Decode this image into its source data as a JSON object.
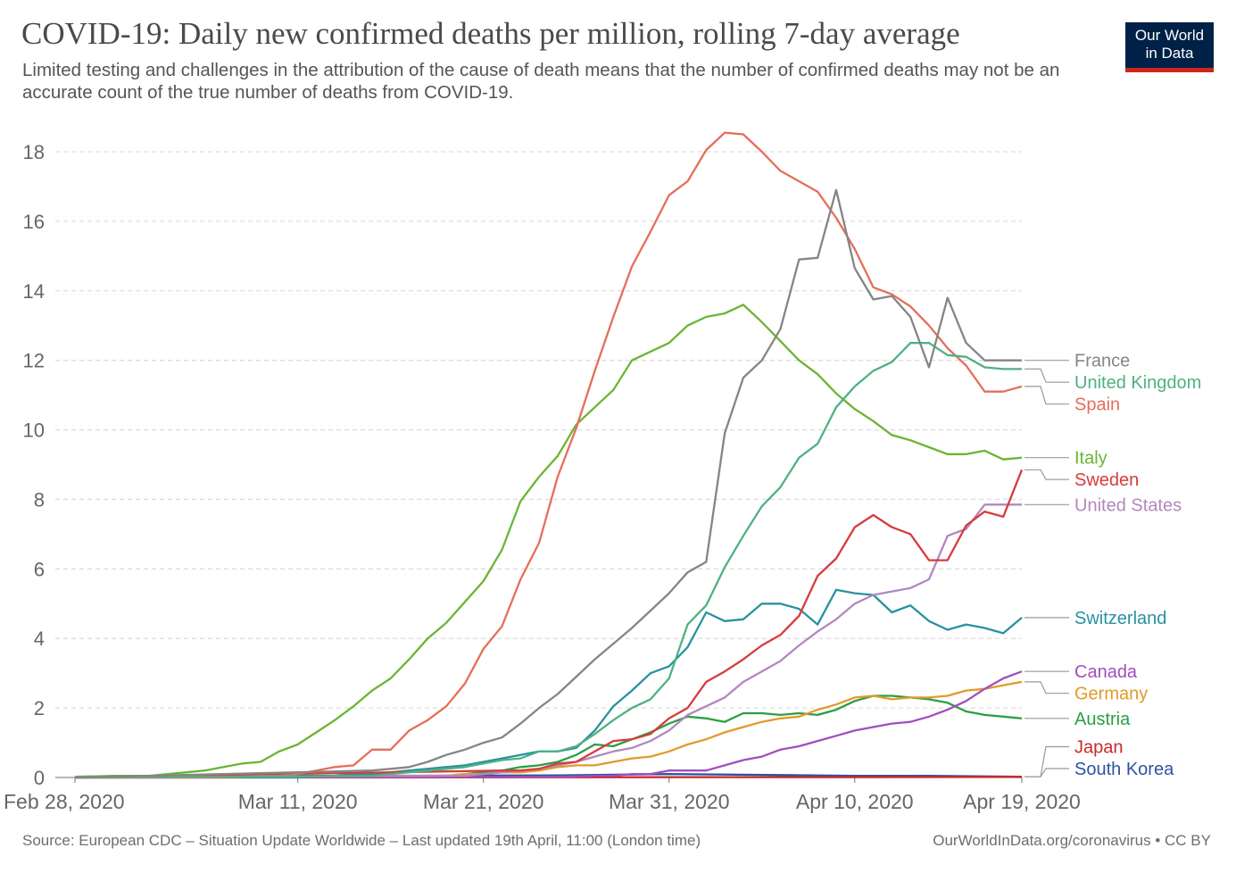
{
  "header": {
    "title": "COVID-19: Daily new confirmed deaths per million, rolling 7-day average",
    "subtitle": "Limited testing and challenges in the attribution of the cause of death means that the number of confirmed deaths may not be an accurate count of the true number of deaths from COVID-19."
  },
  "logo": {
    "line1": "Our World",
    "line2": "in Data"
  },
  "footer": {
    "source": "Source: European CDC – Situation Update Worldwide – Last updated 19th April, 11:00 (London time)",
    "credit": "OurWorldInData.org/coronavirus • CC BY"
  },
  "colors": {
    "grid": "#dddddd",
    "axis_text": "#666666",
    "connector": "#999999"
  },
  "chart_data": {
    "type": "line",
    "title": "COVID-19: Daily new confirmed deaths per million, rolling 7-day average",
    "xlabel": "",
    "ylabel": "",
    "x_start_date": "2020-02-28",
    "x_end_date": "2020-04-19",
    "xlim": [
      "2020-02-28",
      "2020-04-19"
    ],
    "ylim": [
      0,
      18
    ],
    "yticks": [
      0,
      2,
      4,
      6,
      8,
      10,
      12,
      14,
      16,
      18
    ],
    "xticks": [
      {
        "date": "2020-02-28",
        "label": "Feb 28, 2020"
      },
      {
        "date": "2020-03-11",
        "label": "Mar 11, 2020"
      },
      {
        "date": "2020-03-21",
        "label": "Mar 21, 2020"
      },
      {
        "date": "2020-03-31",
        "label": "Mar 31, 2020"
      },
      {
        "date": "2020-04-10",
        "label": "Apr 10, 2020"
      },
      {
        "date": "2020-04-19",
        "label": "Apr 19, 2020"
      }
    ],
    "grid": "horizontal dashed",
    "legend": "right, end-of-line labels",
    "series": [
      {
        "name": "France",
        "color": "#858585",
        "x": [
          "2020-03-15",
          "2020-03-16",
          "2020-03-17",
          "2020-03-18",
          "2020-03-19",
          "2020-03-20",
          "2020-03-21",
          "2020-03-22",
          "2020-03-23",
          "2020-03-24",
          "2020-03-25",
          "2020-03-26",
          "2020-03-27",
          "2020-03-28",
          "2020-03-29",
          "2020-03-30",
          "2020-03-31",
          "2020-04-01",
          "2020-04-02",
          "2020-04-03",
          "2020-04-04",
          "2020-04-05",
          "2020-04-06",
          "2020-04-07",
          "2020-04-08",
          "2020-04-09",
          "2020-04-10",
          "2020-04-11",
          "2020-04-12",
          "2020-04-13",
          "2020-04-14",
          "2020-04-15",
          "2020-04-16",
          "2020-04-17",
          "2020-04-18",
          "2020-04-19"
        ],
        "y": [
          0.2,
          0.25,
          0.3,
          0.45,
          0.65,
          0.8,
          1.0,
          1.15,
          1.55,
          2.0,
          2.4,
          2.9,
          3.4,
          3.85,
          4.3,
          4.8,
          5.3,
          5.9,
          6.2,
          9.9,
          11.5,
          12.0,
          12.9,
          14.9,
          14.95,
          16.9,
          14.65,
          13.75,
          13.85,
          13.25,
          11.8,
          13.8,
          12.5,
          12.0,
          12.0,
          12.0
        ]
      },
      {
        "name": "United Kingdom",
        "color": "#4fb183",
        "x": [
          "2020-03-15",
          "2020-03-16",
          "2020-03-17",
          "2020-03-18",
          "2020-03-19",
          "2020-03-20",
          "2020-03-21",
          "2020-03-22",
          "2020-03-23",
          "2020-03-24",
          "2020-03-25",
          "2020-03-26",
          "2020-03-27",
          "2020-03-28",
          "2020-03-29",
          "2020-03-30",
          "2020-03-31",
          "2020-04-01",
          "2020-04-02",
          "2020-04-03",
          "2020-04-04",
          "2020-04-05",
          "2020-04-06",
          "2020-04-07",
          "2020-04-08",
          "2020-04-09",
          "2020-04-10",
          "2020-04-11",
          "2020-04-12",
          "2020-04-13",
          "2020-04-14",
          "2020-04-15",
          "2020-04-16",
          "2020-04-17",
          "2020-04-18",
          "2020-04-19"
        ],
        "y": [
          0.05,
          0.1,
          0.15,
          0.2,
          0.25,
          0.3,
          0.4,
          0.5,
          0.55,
          0.75,
          0.75,
          0.9,
          1.25,
          1.65,
          2.0,
          2.25,
          2.85,
          4.4,
          4.95,
          6.05,
          6.95,
          7.8,
          8.35,
          9.2,
          9.6,
          10.65,
          11.25,
          11.7,
          11.95,
          12.5,
          12.5,
          12.15,
          12.1,
          11.8,
          11.75,
          11.75
        ]
      },
      {
        "name": "Spain",
        "color": "#e56e5a",
        "x": [
          "2020-03-07",
          "2020-03-08",
          "2020-03-09",
          "2020-03-10",
          "2020-03-11",
          "2020-03-12",
          "2020-03-13",
          "2020-03-14",
          "2020-03-15",
          "2020-03-16",
          "2020-03-17",
          "2020-03-18",
          "2020-03-19",
          "2020-03-20",
          "2020-03-21",
          "2020-03-22",
          "2020-03-23",
          "2020-03-24",
          "2020-03-25",
          "2020-03-26",
          "2020-03-27",
          "2020-03-28",
          "2020-03-29",
          "2020-03-30",
          "2020-03-31",
          "2020-04-01",
          "2020-04-02",
          "2020-04-03",
          "2020-04-04",
          "2020-04-05",
          "2020-04-06",
          "2020-04-07",
          "2020-04-08",
          "2020-04-09",
          "2020-04-10",
          "2020-04-11",
          "2020-04-12",
          "2020-04-13",
          "2020-04-14",
          "2020-04-15",
          "2020-04-16",
          "2020-04-17",
          "2020-04-18",
          "2020-04-19"
        ],
        "y": [
          0.0,
          0.02,
          0.05,
          0.05,
          0.1,
          0.2,
          0.3,
          0.35,
          0.8,
          0.8,
          1.35,
          1.65,
          2.05,
          2.7,
          3.7,
          4.35,
          5.7,
          6.75,
          8.65,
          10.05,
          11.7,
          13.25,
          14.7,
          15.7,
          16.75,
          17.15,
          18.05,
          18.55,
          18.5,
          18.0,
          17.45,
          17.15,
          16.85,
          16.1,
          15.2,
          14.1,
          13.9,
          13.55,
          13.0,
          12.35,
          11.85,
          11.1,
          11.1,
          11.25
        ]
      },
      {
        "name": "Italy",
        "color": "#6ab534",
        "x": [
          "2020-02-28",
          "2020-02-29",
          "2020-03-01",
          "2020-03-02",
          "2020-03-03",
          "2020-03-04",
          "2020-03-05",
          "2020-03-06",
          "2020-03-07",
          "2020-03-08",
          "2020-03-09",
          "2020-03-10",
          "2020-03-11",
          "2020-03-12",
          "2020-03-13",
          "2020-03-14",
          "2020-03-15",
          "2020-03-16",
          "2020-03-17",
          "2020-03-18",
          "2020-03-19",
          "2020-03-20",
          "2020-03-21",
          "2020-03-22",
          "2020-03-23",
          "2020-03-24",
          "2020-03-25",
          "2020-03-26",
          "2020-03-27",
          "2020-03-28",
          "2020-03-29",
          "2020-03-30",
          "2020-03-31",
          "2020-04-01",
          "2020-04-02",
          "2020-04-03",
          "2020-04-04",
          "2020-04-05",
          "2020-04-06",
          "2020-04-07",
          "2020-04-08",
          "2020-04-09",
          "2020-04-10",
          "2020-04-11",
          "2020-04-12",
          "2020-04-13",
          "2020-04-14",
          "2020-04-15",
          "2020-04-16",
          "2020-04-17",
          "2020-04-18",
          "2020-04-19"
        ],
        "y": [
          0.02,
          0.03,
          0.05,
          0.05,
          0.05,
          0.1,
          0.15,
          0.2,
          0.3,
          0.4,
          0.45,
          0.75,
          0.95,
          1.3,
          1.65,
          2.05,
          2.5,
          2.85,
          3.4,
          4.0,
          4.45,
          5.05,
          5.65,
          6.55,
          7.95,
          8.65,
          9.25,
          10.15,
          10.65,
          11.15,
          12.0,
          12.25,
          12.5,
          13.0,
          13.25,
          13.35,
          13.6,
          13.1,
          12.55,
          12.0,
          11.6,
          11.05,
          10.6,
          10.25,
          9.85,
          9.7,
          9.5,
          9.3,
          9.3,
          9.4,
          9.15,
          9.2
        ]
      },
      {
        "name": "Sweden",
        "color": "#d73c3c",
        "x": [
          "2020-03-22",
          "2020-03-23",
          "2020-03-24",
          "2020-03-25",
          "2020-03-26",
          "2020-03-27",
          "2020-03-28",
          "2020-03-29",
          "2020-03-30",
          "2020-03-31",
          "2020-04-01",
          "2020-04-02",
          "2020-04-03",
          "2020-04-04",
          "2020-04-05",
          "2020-04-06",
          "2020-04-07",
          "2020-04-08",
          "2020-04-09",
          "2020-04-10",
          "2020-04-11",
          "2020-04-12",
          "2020-04-13",
          "2020-04-14",
          "2020-04-15",
          "2020-04-16",
          "2020-04-17",
          "2020-04-18",
          "2020-04-19"
        ],
        "y": [
          0.2,
          0.2,
          0.25,
          0.4,
          0.45,
          0.75,
          1.05,
          1.1,
          1.25,
          1.7,
          2.0,
          2.75,
          3.05,
          3.4,
          3.8,
          4.1,
          4.65,
          5.8,
          6.3,
          7.2,
          7.55,
          7.2,
          7.0,
          6.25,
          6.25,
          7.25,
          7.65,
          7.5,
          8.85
        ]
      },
      {
        "name": "United States",
        "color": "#b287c0",
        "x": [
          "2020-03-20",
          "2020-03-21",
          "2020-03-22",
          "2020-03-23",
          "2020-03-24",
          "2020-03-25",
          "2020-03-26",
          "2020-03-27",
          "2020-03-28",
          "2020-03-29",
          "2020-03-30",
          "2020-03-31",
          "2020-04-01",
          "2020-04-02",
          "2020-04-03",
          "2020-04-04",
          "2020-04-05",
          "2020-04-06",
          "2020-04-07",
          "2020-04-08",
          "2020-04-09",
          "2020-04-10",
          "2020-04-11",
          "2020-04-12",
          "2020-04-13",
          "2020-04-14",
          "2020-04-15",
          "2020-04-16",
          "2020-04-17",
          "2020-04-18",
          "2020-04-19"
        ],
        "y": [
          0.05,
          0.1,
          0.15,
          0.2,
          0.25,
          0.35,
          0.45,
          0.6,
          0.75,
          0.85,
          1.05,
          1.35,
          1.8,
          2.05,
          2.3,
          2.75,
          3.05,
          3.35,
          3.8,
          4.2,
          4.55,
          5.0,
          5.25,
          5.35,
          5.45,
          5.7,
          6.95,
          7.15,
          7.85,
          7.85,
          7.85
        ]
      },
      {
        "name": "Switzerland",
        "color": "#28929f",
        "x": [
          "2020-03-11",
          "2020-03-12",
          "2020-03-13",
          "2020-03-14",
          "2020-03-15",
          "2020-03-16",
          "2020-03-17",
          "2020-03-18",
          "2020-03-19",
          "2020-03-20",
          "2020-03-21",
          "2020-03-22",
          "2020-03-23",
          "2020-03-24",
          "2020-03-25",
          "2020-03-26",
          "2020-03-27",
          "2020-03-28",
          "2020-03-29",
          "2020-03-30",
          "2020-03-31",
          "2020-04-01",
          "2020-04-02",
          "2020-04-03",
          "2020-04-04",
          "2020-04-05",
          "2020-04-06",
          "2020-04-07",
          "2020-04-08",
          "2020-04-09",
          "2020-04-10",
          "2020-04-11",
          "2020-04-12",
          "2020-04-13",
          "2020-04-14",
          "2020-04-15",
          "2020-04-16",
          "2020-04-17",
          "2020-04-18",
          "2020-04-19"
        ],
        "y": [
          0.0,
          0.02,
          0.05,
          0.1,
          0.1,
          0.15,
          0.2,
          0.25,
          0.3,
          0.35,
          0.45,
          0.55,
          0.65,
          0.75,
          0.75,
          0.85,
          1.35,
          2.05,
          2.5,
          3.0,
          3.2,
          3.75,
          4.75,
          4.5,
          4.55,
          5.0,
          5.0,
          4.85,
          4.4,
          5.4,
          5.3,
          5.25,
          4.75,
          4.95,
          4.5,
          4.25,
          4.4,
          4.3,
          4.15,
          4.6
        ]
      },
      {
        "name": "Canada",
        "color": "#a14ebf",
        "x": [
          "2020-03-25",
          "2020-03-26",
          "2020-03-27",
          "2020-03-28",
          "2020-03-29",
          "2020-03-30",
          "2020-03-31",
          "2020-04-01",
          "2020-04-02",
          "2020-04-03",
          "2020-04-04",
          "2020-04-05",
          "2020-04-06",
          "2020-04-07",
          "2020-04-08",
          "2020-04-09",
          "2020-04-10",
          "2020-04-11",
          "2020-04-12",
          "2020-04-13",
          "2020-04-14",
          "2020-04-15",
          "2020-04-16",
          "2020-04-17",
          "2020-04-18",
          "2020-04-19"
        ],
        "y": [
          0.02,
          0.03,
          0.05,
          0.05,
          0.1,
          0.1,
          0.2,
          0.2,
          0.2,
          0.35,
          0.5,
          0.6,
          0.8,
          0.9,
          1.05,
          1.2,
          1.35,
          1.45,
          1.55,
          1.6,
          1.75,
          1.95,
          2.2,
          2.55,
          2.85,
          3.05
        ]
      },
      {
        "name": "Germany",
        "color": "#e19b28",
        "x": [
          "2020-03-18",
          "2020-03-19",
          "2020-03-20",
          "2020-03-21",
          "2020-03-22",
          "2020-03-23",
          "2020-03-24",
          "2020-03-25",
          "2020-03-26",
          "2020-03-27",
          "2020-03-28",
          "2020-03-29",
          "2020-03-30",
          "2020-03-31",
          "2020-04-01",
          "2020-04-02",
          "2020-04-03",
          "2020-04-04",
          "2020-04-05",
          "2020-04-06",
          "2020-04-07",
          "2020-04-08",
          "2020-04-09",
          "2020-04-10",
          "2020-04-11",
          "2020-04-12",
          "2020-04-13",
          "2020-04-14",
          "2020-04-15",
          "2020-04-16",
          "2020-04-17",
          "2020-04-18",
          "2020-04-19"
        ],
        "y": [
          0.05,
          0.05,
          0.1,
          0.1,
          0.15,
          0.15,
          0.2,
          0.3,
          0.35,
          0.35,
          0.45,
          0.55,
          0.6,
          0.75,
          0.95,
          1.1,
          1.3,
          1.45,
          1.6,
          1.7,
          1.75,
          1.95,
          2.1,
          2.3,
          2.35,
          2.25,
          2.3,
          2.3,
          2.35,
          2.5,
          2.55,
          2.65,
          2.75
        ]
      },
      {
        "name": "Austria",
        "color": "#2a9f45",
        "x": [
          "2020-03-18",
          "2020-03-19",
          "2020-03-20",
          "2020-03-21",
          "2020-03-22",
          "2020-03-23",
          "2020-03-24",
          "2020-03-25",
          "2020-03-26",
          "2020-03-27",
          "2020-03-28",
          "2020-03-29",
          "2020-03-30",
          "2020-03-31",
          "2020-04-01",
          "2020-04-02",
          "2020-04-03",
          "2020-04-04",
          "2020-04-05",
          "2020-04-06",
          "2020-04-07",
          "2020-04-08",
          "2020-04-09",
          "2020-04-10",
          "2020-04-11",
          "2020-04-12",
          "2020-04-13",
          "2020-04-14",
          "2020-04-15",
          "2020-04-16",
          "2020-04-17",
          "2020-04-18",
          "2020-04-19"
        ],
        "y": [
          0.05,
          0.05,
          0.1,
          0.15,
          0.2,
          0.3,
          0.35,
          0.45,
          0.65,
          0.95,
          0.9,
          1.1,
          1.3,
          1.55,
          1.75,
          1.7,
          1.6,
          1.85,
          1.85,
          1.8,
          1.85,
          1.8,
          1.95,
          2.2,
          2.35,
          2.35,
          2.3,
          2.25,
          2.15,
          1.9,
          1.8,
          1.75,
          1.7
        ]
      },
      {
        "name": "Japan",
        "color": "#c92a2a",
        "x": [
          "2020-03-01",
          "2020-03-15",
          "2020-04-01",
          "2020-04-10",
          "2020-04-19"
        ],
        "y": [
          0.0,
          0.0,
          0.01,
          0.01,
          0.02
        ]
      },
      {
        "name": "South Korea",
        "color": "#2c53a0",
        "x": [
          "2020-02-28",
          "2020-03-05",
          "2020-03-15",
          "2020-03-25",
          "2020-03-31",
          "2020-04-10",
          "2020-04-14",
          "2020-04-19"
        ],
        "y": [
          0.02,
          0.05,
          0.05,
          0.06,
          0.1,
          0.05,
          0.05,
          0.02
        ]
      }
    ]
  }
}
